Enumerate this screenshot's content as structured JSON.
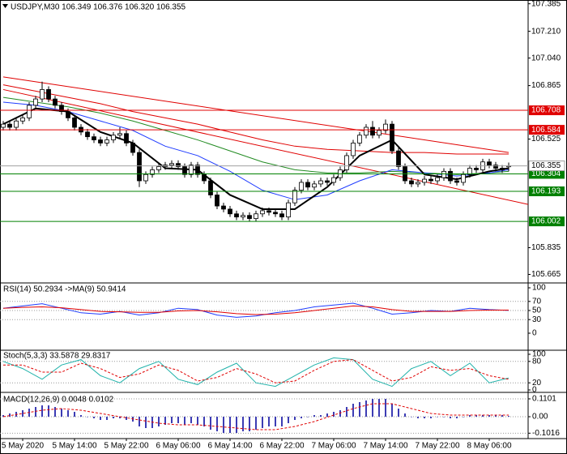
{
  "chart_data": {
    "type": "candlestick",
    "header": "USDJPY,M30 106.349 106.376 106.320 106.355",
    "categories": [
      null,
      null,
      null,
      "5 May 2020",
      null,
      null,
      null,
      null,
      null,
      null,
      null,
      "5 May 14:00",
      null,
      null,
      null,
      null,
      null,
      null,
      null,
      "5 May 22:00",
      null,
      null,
      null,
      null,
      null,
      null,
      null,
      "6 May 06:00",
      null,
      null,
      null,
      null,
      null,
      null,
      null,
      "6 May 14:00",
      null,
      null,
      null,
      null,
      null,
      null,
      null,
      "6 May 22:00",
      null,
      null,
      null,
      null,
      null,
      null,
      null,
      "7 May 06:00",
      null,
      null,
      null,
      null,
      null,
      null,
      null,
      "7 May 14:00",
      null,
      null,
      null,
      null,
      null,
      null,
      null,
      "7 May 22:00",
      null,
      null,
      null,
      null,
      null,
      null,
      null,
      "8 May 06:00",
      null,
      null,
      null
    ],
    "open": [
      106.6,
      106.62,
      106.6,
      106.64,
      106.66,
      106.74,
      106.78,
      106.84,
      106.78,
      106.74,
      106.7,
      106.66,
      106.6,
      106.57,
      106.54,
      106.52,
      106.5,
      106.52,
      106.55,
      106.56,
      106.5,
      106.44,
      106.26,
      106.3,
      106.33,
      106.35,
      106.36,
      106.37,
      106.35,
      106.3,
      106.36,
      106.3,
      106.26,
      106.17,
      106.1,
      106.08,
      106.05,
      106.03,
      106.04,
      106.02,
      106.05,
      106.07,
      106.06,
      106.05,
      106.03,
      106.12,
      106.2,
      106.25,
      106.22,
      106.24,
      106.26,
      106.25,
      106.28,
      106.33,
      106.42,
      106.5,
      106.55,
      106.6,
      106.55,
      106.58,
      106.62,
      106.45,
      106.35,
      106.26,
      106.24,
      106.25,
      106.27,
      106.26,
      106.28,
      106.32,
      106.26,
      106.25,
      106.3,
      106.34,
      106.33,
      106.38,
      106.36,
      106.34,
      106.349
    ],
    "high": [
      106.64,
      106.64,
      106.66,
      106.68,
      106.76,
      106.8,
      106.89,
      106.86,
      106.8,
      106.76,
      106.72,
      106.68,
      106.62,
      106.59,
      106.56,
      106.54,
      106.54,
      106.57,
      106.6,
      106.58,
      106.52,
      106.46,
      106.32,
      106.35,
      106.37,
      106.38,
      106.39,
      106.39,
      106.37,
      106.38,
      106.38,
      106.32,
      106.28,
      106.19,
      106.12,
      106.1,
      106.07,
      106.06,
      106.06,
      106.07,
      106.09,
      106.09,
      106.08,
      106.07,
      106.14,
      106.22,
      106.27,
      106.27,
      106.26,
      106.28,
      106.28,
      106.3,
      106.35,
      106.44,
      106.52,
      106.57,
      106.62,
      106.64,
      106.6,
      106.65,
      106.64,
      106.47,
      106.37,
      106.28,
      106.27,
      106.29,
      106.29,
      106.3,
      106.34,
      106.34,
      106.28,
      106.32,
      106.36,
      106.36,
      106.4,
      106.4,
      106.38,
      106.36,
      106.376
    ],
    "low": [
      106.58,
      106.58,
      106.58,
      106.62,
      106.64,
      106.72,
      106.76,
      106.76,
      106.72,
      106.68,
      106.64,
      106.58,
      106.55,
      106.52,
      106.5,
      106.48,
      106.48,
      106.5,
      106.53,
      106.48,
      106.42,
      106.22,
      106.24,
      106.28,
      106.31,
      106.33,
      106.34,
      106.33,
      106.28,
      106.28,
      106.28,
      106.24,
      106.15,
      106.08,
      106.06,
      106.03,
      106.01,
      106.01,
      106.0,
      106.0,
      106.03,
      106.04,
      106.03,
      106.01,
      106.01,
      106.1,
      106.18,
      106.2,
      106.2,
      106.22,
      106.23,
      106.23,
      106.26,
      106.31,
      106.4,
      106.48,
      106.53,
      106.53,
      106.53,
      106.56,
      106.43,
      106.33,
      106.24,
      106.22,
      106.22,
      106.23,
      106.24,
      106.24,
      106.26,
      106.24,
      106.23,
      106.23,
      106.28,
      106.31,
      106.31,
      106.34,
      106.32,
      106.31,
      106.32
    ],
    "close": [
      106.62,
      106.6,
      106.64,
      106.66,
      106.74,
      106.78,
      106.84,
      106.78,
      106.74,
      106.7,
      106.66,
      106.6,
      106.57,
      106.54,
      106.52,
      106.5,
      106.52,
      106.55,
      106.56,
      106.5,
      106.44,
      106.26,
      106.3,
      106.33,
      106.35,
      106.36,
      106.37,
      106.35,
      106.3,
      106.36,
      106.3,
      106.26,
      106.17,
      106.1,
      106.08,
      106.05,
      106.03,
      106.04,
      106.02,
      106.05,
      106.07,
      106.06,
      106.05,
      106.03,
      106.12,
      106.2,
      106.25,
      106.22,
      106.24,
      106.26,
      106.25,
      106.28,
      106.33,
      106.42,
      106.5,
      106.55,
      106.6,
      106.55,
      106.58,
      106.62,
      106.45,
      106.35,
      106.26,
      106.24,
      106.25,
      106.27,
      106.26,
      106.28,
      106.32,
      106.26,
      106.25,
      106.3,
      106.34,
      106.33,
      106.38,
      106.36,
      106.34,
      106.33,
      106.355
    ],
    "up_color": "#ffffff",
    "down_color": "#000000",
    "ylim": [
      105.616,
      107.409
    ],
    "yticks": [
      107.385,
      {
        "value": 107.21,
        "label": "107.210"
      },
      {
        "value": 107.04,
        "label": "107.040"
      },
      106.865,
      106.525,
      105.835,
      105.665
    ],
    "ma_index": [
      0,
      5,
      10,
      15,
      20,
      25,
      30,
      35,
      40,
      45,
      50,
      55,
      60,
      65,
      70,
      75,
      78
    ],
    "moving_averages": [
      {
        "color": "#e00000",
        "values": [
          106.87,
          106.83,
          106.79,
          106.75,
          106.7,
          106.66,
          106.62,
          106.57,
          106.52,
          106.48,
          106.46,
          106.45,
          106.44,
          106.44,
          106.43,
          106.43,
          106.43
        ]
      },
      {
        "color": "#228b22",
        "values": [
          106.79,
          106.76,
          106.73,
          106.69,
          106.64,
          106.58,
          106.52,
          106.45,
          106.38,
          106.33,
          106.31,
          106.31,
          106.32,
          106.31,
          106.3,
          106.31,
          106.32
        ]
      },
      {
        "color": "#1f3cff",
        "values": [
          106.76,
          106.74,
          106.7,
          106.64,
          106.58,
          106.48,
          106.42,
          106.32,
          106.2,
          106.14,
          106.17,
          106.26,
          106.33,
          106.31,
          106.29,
          106.31,
          106.33
        ]
      },
      {
        "color": "#000000",
        "values": [
          106.62,
          106.72,
          106.7,
          106.57,
          106.5,
          106.34,
          106.33,
          106.17,
          106.08,
          106.08,
          106.22,
          106.42,
          106.52,
          106.3,
          106.27,
          106.32,
          106.34
        ]
      }
    ],
    "trendlines": [
      {
        "color": "#e00000",
        "x": [
          0,
          78
        ],
        "values": [
          106.92,
          106.44
        ]
      },
      {
        "color": "#e00000",
        "x": [
          0,
          81
        ],
        "values": [
          106.84,
          106.11
        ]
      }
    ],
    "levels": [
      {
        "value": 106.708,
        "color": "#e00000"
      },
      {
        "value": 106.584,
        "color": "#e00000"
      },
      {
        "value": 106.304,
        "color": "#008000"
      },
      {
        "value": 106.193,
        "color": "#008000"
      },
      {
        "value": 106.002,
        "color": "#008000"
      }
    ],
    "osc_index": [
      0,
      3,
      6,
      9,
      12,
      15,
      18,
      21,
      24,
      27,
      30,
      33,
      36,
      39,
      42,
      45,
      48,
      51,
      54,
      57,
      60,
      63,
      66,
      69,
      72,
      75,
      78
    ],
    "rsi": {
      "title": "RSI(14) 50.2934 ->MA(9) 50.9414",
      "ylim": [
        0,
        100
      ],
      "yticks": [
        100,
        70,
        50,
        30,
        0
      ],
      "series": [
        {
          "color": "#1f3cff",
          "values": [
            55,
            60,
            65,
            55,
            45,
            42,
            48,
            40,
            45,
            55,
            52,
            40,
            35,
            38,
            45,
            50,
            58,
            62,
            66,
            55,
            42,
            45,
            50,
            48,
            55,
            52,
            50.2934
          ]
        },
        {
          "color": "#e00000",
          "values": [
            55,
            57,
            58,
            56,
            52,
            48,
            47,
            46,
            46,
            49,
            50,
            47,
            43,
            41,
            42,
            45,
            50,
            55,
            60,
            58,
            52,
            48,
            48,
            48,
            50,
            51,
            50.9414
          ]
        }
      ]
    },
    "stoch": {
      "title": "Stoch(5,3,3) 33.5878 29.8317",
      "ylim": [
        0,
        100
      ],
      "yticks": [
        100,
        80,
        20,
        0
      ],
      "series": [
        {
          "color": "#20b2aa",
          "values": [
            80,
            60,
            30,
            70,
            85,
            40,
            20,
            60,
            80,
            30,
            15,
            50,
            75,
            20,
            10,
            40,
            70,
            90,
            85,
            30,
            10,
            60,
            80,
            40,
            75,
            20,
            33.5878
          ]
        },
        {
          "color": "#e00000",
          "dashed": true,
          "values": [
            70,
            70,
            50,
            50,
            75,
            60,
            35,
            45,
            70,
            55,
            25,
            35,
            60,
            45,
            20,
            25,
            55,
            80,
            85,
            55,
            25,
            35,
            65,
            55,
            60,
            40,
            29.8317
          ]
        }
      ]
    },
    "macd": {
      "title": "MACD(12,26,9) 0.0048 0.0102",
      "ylim": [
        -0.13,
        0.14
      ],
      "yticks": [
        0.1101,
        {
          "value": 0,
          "label": "0.00"
        },
        -0.1016
      ],
      "histogram": {
        "color": "#3c3cb4",
        "values": [
          0.01,
          0.02,
          0.03,
          0.04,
          0.05,
          0.06,
          0.07,
          0.07,
          0.06,
          0.05,
          0.04,
          0.03,
          0.01,
          0.0,
          -0.01,
          -0.02,
          -0.02,
          -0.01,
          -0.01,
          -0.02,
          -0.03,
          -0.06,
          -0.07,
          -0.07,
          -0.06,
          -0.05,
          -0.04,
          -0.04,
          -0.05,
          -0.04,
          -0.05,
          -0.06,
          -0.08,
          -0.09,
          -0.1,
          -0.1,
          -0.1,
          -0.09,
          -0.09,
          -0.08,
          -0.07,
          -0.06,
          -0.06,
          -0.06,
          -0.04,
          -0.02,
          -0.01,
          0.0,
          0.01,
          0.01,
          0.02,
          0.03,
          0.04,
          0.06,
          0.08,
          0.09,
          0.1,
          0.11,
          0.11,
          0.11,
          0.08,
          0.05,
          0.02,
          0.0,
          -0.01,
          -0.01,
          -0.01,
          0.0,
          0.0,
          -0.01,
          -0.01,
          0.0,
          0.01,
          0.01,
          0.01,
          0.01,
          0.01,
          0.01,
          0.0048
        ]
      },
      "signal": {
        "color": "#e00000",
        "dashed": true,
        "values": [
          0.0,
          0.02,
          0.04,
          0.05,
          0.04,
          0.02,
          0.0,
          -0.02,
          -0.04,
          -0.05,
          -0.05,
          -0.06,
          -0.07,
          -0.08,
          -0.08,
          -0.06,
          -0.03,
          0.01,
          0.05,
          0.08,
          0.08,
          0.05,
          0.02,
          0.01,
          0.01,
          0.01,
          0.0102
        ]
      }
    }
  }
}
